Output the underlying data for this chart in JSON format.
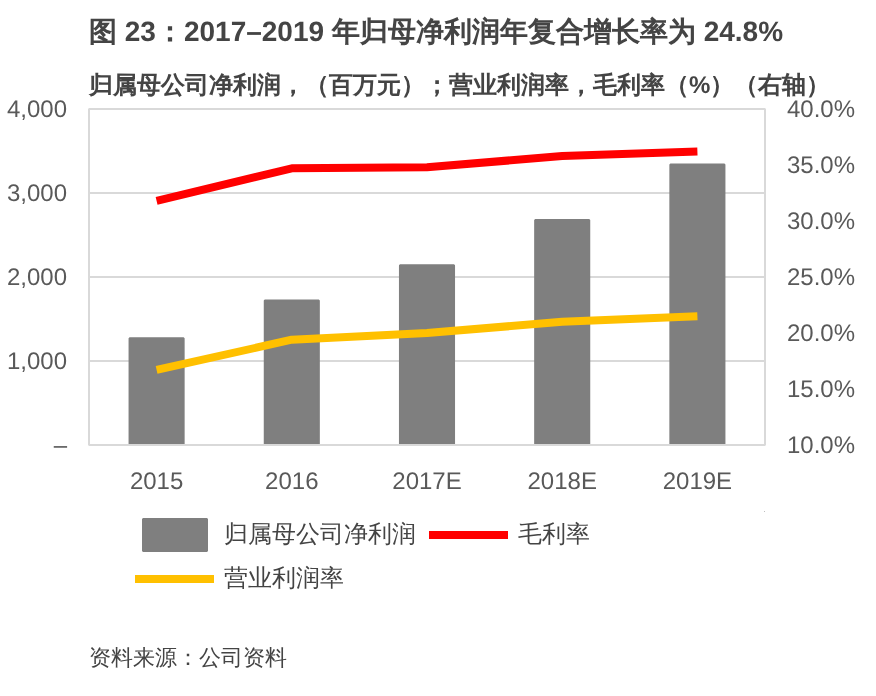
{
  "chart_data": {
    "type": "bar",
    "title": "图 23：2017–2019 年归母净利润年复合增长率为 24.8%",
    "subtitle": "归属母公司净利润，（百万元）；营业利润率，毛利率（%）（右轴）",
    "categories": [
      "2015",
      "2016",
      "2017E",
      "2018E",
      "2019E"
    ],
    "series": [
      {
        "name": "归属母公司净利润",
        "color": "#7f7f7f",
        "values": [
          1270,
          1720,
          2140,
          2680,
          3340
        ]
      },
      {
        "name": "毛利率",
        "type": "line",
        "axis": "y2",
        "color": "#ff0000",
        "values": [
          31.8,
          34.7,
          34.8,
          35.8,
          36.2
        ]
      },
      {
        "name": "营业利润率",
        "type": "line",
        "axis": "y2",
        "color": "#ffc000",
        "values": [
          16.7,
          19.4,
          20.0,
          21.0,
          21.5
        ]
      }
    ],
    "ylim": [
      0,
      4000
    ],
    "yticks": [
      {
        "value": 0,
        "label": "–"
      },
      {
        "value": 1000,
        "label": "1,000"
      },
      {
        "value": 2000,
        "label": "2,000"
      },
      {
        "value": 3000,
        "label": "3,000"
      },
      {
        "value": 4000,
        "label": "4,000"
      }
    ],
    "y2lim": [
      10,
      40
    ],
    "y2ticks": [
      {
        "value": 10,
        "label": "10.0%"
      },
      {
        "value": 15,
        "label": "15.0%"
      },
      {
        "value": 20,
        "label": "20.0%"
      },
      {
        "value": 25,
        "label": "25.0%"
      },
      {
        "value": 30,
        "label": "30.0%"
      },
      {
        "value": 35,
        "label": "35.0%"
      },
      {
        "value": 40,
        "label": "40.0%"
      }
    ],
    "grid": "y",
    "legend": "bottom",
    "marker": "none",
    "line_style": "solid",
    "annotations": [
      "资料来源：公司资料"
    ]
  }
}
